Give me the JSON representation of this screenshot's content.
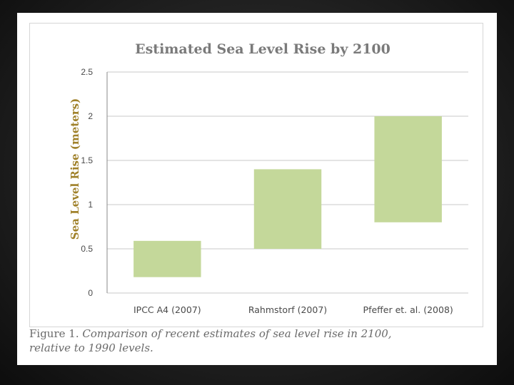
{
  "chart_data": {
    "type": "bar",
    "title": "Estimated Sea Level Rise by 2100",
    "xlabel": "",
    "ylabel": "Sea Level Rise (meters)",
    "ylim": [
      0,
      2.5
    ],
    "yticks": [
      "0",
      "0.5",
      "1",
      "1.5",
      "2",
      "2.5"
    ],
    "grid": true,
    "categories": [
      "IPCC A4 (2007)",
      "Rahmstorf (2007)",
      "Pfeffer et. al. (2008)"
    ],
    "ranges": [
      {
        "low": 0.18,
        "high": 0.59
      },
      {
        "low": 0.5,
        "high": 1.4
      },
      {
        "low": 0.8,
        "high": 2.0
      }
    ],
    "bar_color": "#c4d89a"
  },
  "caption": {
    "label": "Figure 1.",
    "line1": "Comparison of recent estimates of sea level rise in 2100,",
    "line2": "relative to 1990 levels."
  }
}
